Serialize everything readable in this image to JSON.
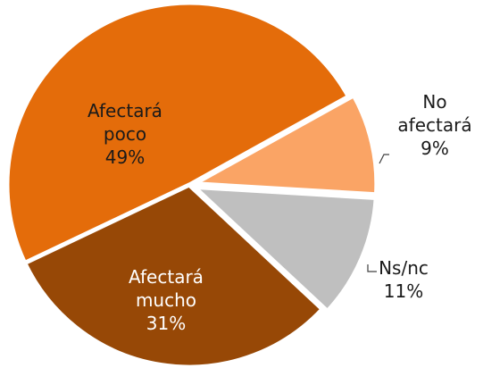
{
  "chart_data": {
    "type": "pie",
    "categories": [
      "No afectará",
      "Ns/nc",
      "Afectará mucho",
      "Afectará poco"
    ],
    "values": [
      9,
      11,
      31,
      49
    ],
    "value_labels": [
      "9%",
      "11%",
      "31%",
      "49%"
    ],
    "colors": [
      "#FAA465",
      "#BFBFBF",
      "#974806",
      "#E46C0A"
    ]
  }
}
